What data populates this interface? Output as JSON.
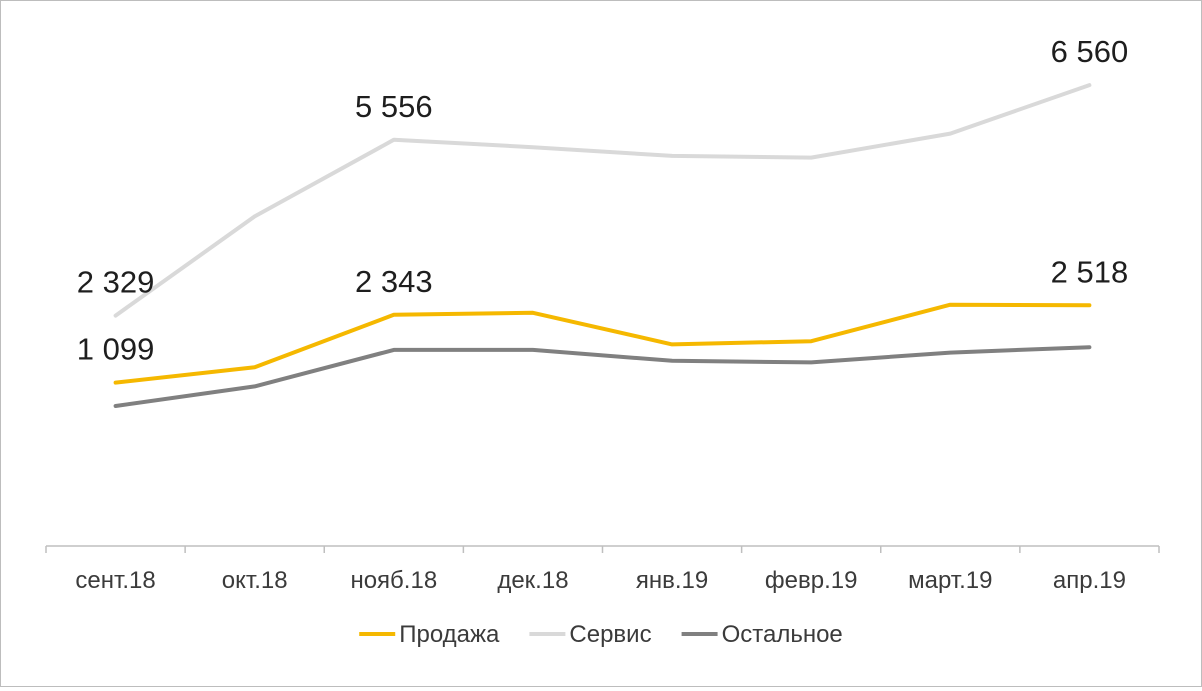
{
  "chart_data": {
    "type": "line",
    "categories": [
      "сент.18",
      "окт.18",
      "нояб.18",
      "дек.18",
      "янв.19",
      "февр.19",
      "март.19",
      "апр.19"
    ],
    "series": [
      {
        "name": "Продажа",
        "color": "#f5b800",
        "values": [
          1099,
          1380,
          2343,
          2380,
          1800,
          1860,
          2530,
          2518
        ],
        "labels": [
          "1 099",
          "",
          "2 343",
          "",
          "",
          "",
          "",
          "2 518"
        ]
      },
      {
        "name": "Сервис",
        "color": "#d9d9d9",
        "values": [
          2329,
          4150,
          5556,
          5420,
          5260,
          5230,
          5670,
          6560
        ],
        "labels": [
          "2 329",
          "",
          "5 556",
          "",
          "",
          "",
          "",
          "6 560"
        ]
      },
      {
        "name": "Остальное",
        "color": "#808080",
        "values": [
          670,
          1030,
          1700,
          1700,
          1500,
          1470,
          1650,
          1750
        ],
        "labels": [
          "",
          "",
          "",
          "",
          "",
          "",
          "",
          ""
        ]
      }
    ],
    "ylim": [
      -1900,
      7700
    ],
    "grid": false,
    "legend_position": "bottom"
  }
}
